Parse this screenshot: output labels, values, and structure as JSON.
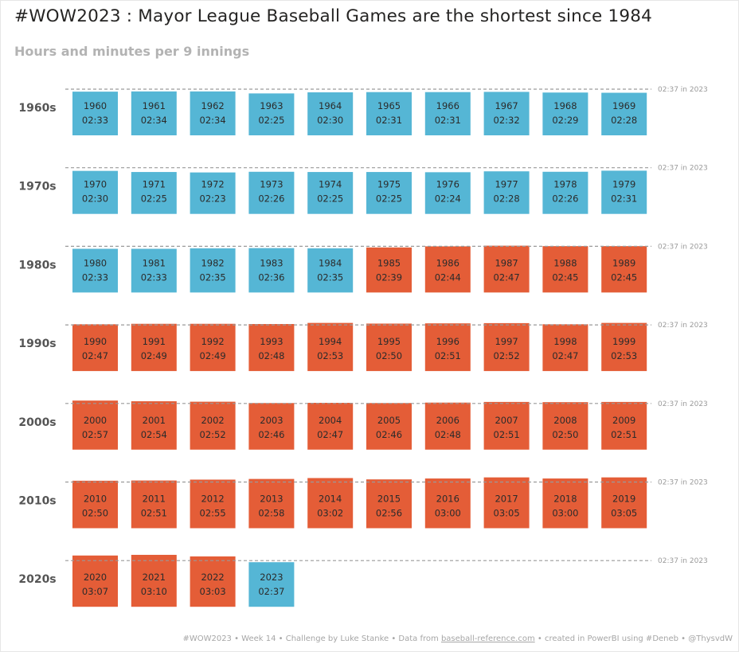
{
  "title": "#WOW2023 : Mayor League Baseball Games are the shortest since 1984",
  "subtitle": "Hours and minutes per 9 innings",
  "colors": {
    "below_reference": "#55b6d5",
    "above_reference": "#e45d37",
    "reference_line": "#9a9a9a",
    "text": "#2b2b2b"
  },
  "chart_data": {
    "type": "heatmap",
    "reference": {
      "label": "02:37 in 2023",
      "minutes": 157
    },
    "decades": [
      {
        "label": "1960s",
        "games": [
          {
            "year": "1960",
            "time": "02:33",
            "minutes": 153
          },
          {
            "year": "1961",
            "time": "02:34",
            "minutes": 154
          },
          {
            "year": "1962",
            "time": "02:34",
            "minutes": 154
          },
          {
            "year": "1963",
            "time": "02:25",
            "minutes": 145
          },
          {
            "year": "1964",
            "time": "02:30",
            "minutes": 150
          },
          {
            "year": "1965",
            "time": "02:31",
            "minutes": 151
          },
          {
            "year": "1966",
            "time": "02:31",
            "minutes": 151
          },
          {
            "year": "1967",
            "time": "02:32",
            "minutes": 152
          },
          {
            "year": "1968",
            "time": "02:29",
            "minutes": 149
          },
          {
            "year": "1969",
            "time": "02:28",
            "minutes": 148
          }
        ]
      },
      {
        "label": "1970s",
        "games": [
          {
            "year": "1970",
            "time": "02:30",
            "minutes": 150
          },
          {
            "year": "1971",
            "time": "02:25",
            "minutes": 145
          },
          {
            "year": "1972",
            "time": "02:23",
            "minutes": 143
          },
          {
            "year": "1973",
            "time": "02:26",
            "minutes": 146
          },
          {
            "year": "1974",
            "time": "02:25",
            "minutes": 145
          },
          {
            "year": "1975",
            "time": "02:25",
            "minutes": 145
          },
          {
            "year": "1976",
            "time": "02:24",
            "minutes": 144
          },
          {
            "year": "1977",
            "time": "02:28",
            "minutes": 148
          },
          {
            "year": "1978",
            "time": "02:26",
            "minutes": 146
          },
          {
            "year": "1979",
            "time": "02:31",
            "minutes": 151
          }
        ]
      },
      {
        "label": "1980s",
        "games": [
          {
            "year": "1980",
            "time": "02:33",
            "minutes": 153
          },
          {
            "year": "1981",
            "time": "02:33",
            "minutes": 153
          },
          {
            "year": "1982",
            "time": "02:35",
            "minutes": 155
          },
          {
            "year": "1983",
            "time": "02:36",
            "minutes": 156
          },
          {
            "year": "1984",
            "time": "02:35",
            "minutes": 155
          },
          {
            "year": "1985",
            "time": "02:39",
            "minutes": 159
          },
          {
            "year": "1986",
            "time": "02:44",
            "minutes": 164
          },
          {
            "year": "1987",
            "time": "02:47",
            "minutes": 167
          },
          {
            "year": "1988",
            "time": "02:45",
            "minutes": 165
          },
          {
            "year": "1989",
            "time": "02:45",
            "minutes": 165
          }
        ]
      },
      {
        "label": "1990s",
        "games": [
          {
            "year": "1990",
            "time": "02:47",
            "minutes": 167
          },
          {
            "year": "1991",
            "time": "02:49",
            "minutes": 169
          },
          {
            "year": "1992",
            "time": "02:49",
            "minutes": 169
          },
          {
            "year": "1993",
            "time": "02:48",
            "minutes": 168
          },
          {
            "year": "1994",
            "time": "02:53",
            "minutes": 173
          },
          {
            "year": "1995",
            "time": "02:50",
            "minutes": 170
          },
          {
            "year": "1996",
            "time": "02:51",
            "minutes": 171
          },
          {
            "year": "1997",
            "time": "02:52",
            "minutes": 172
          },
          {
            "year": "1998",
            "time": "02:47",
            "minutes": 167
          },
          {
            "year": "1999",
            "time": "02:53",
            "minutes": 173
          }
        ]
      },
      {
        "label": "2000s",
        "games": [
          {
            "year": "2000",
            "time": "02:57",
            "minutes": 177
          },
          {
            "year": "2001",
            "time": "02:54",
            "minutes": 174
          },
          {
            "year": "2002",
            "time": "02:52",
            "minutes": 172
          },
          {
            "year": "2003",
            "time": "02:46",
            "minutes": 166
          },
          {
            "year": "2004",
            "time": "02:47",
            "minutes": 167
          },
          {
            "year": "2005",
            "time": "02:46",
            "minutes": 166
          },
          {
            "year": "2006",
            "time": "02:48",
            "minutes": 168
          },
          {
            "year": "2007",
            "time": "02:51",
            "minutes": 171
          },
          {
            "year": "2008",
            "time": "02:50",
            "minutes": 170
          },
          {
            "year": "2009",
            "time": "02:51",
            "minutes": 171
          }
        ]
      },
      {
        "label": "2010s",
        "games": [
          {
            "year": "2010",
            "time": "02:50",
            "minutes": 170
          },
          {
            "year": "2011",
            "time": "02:51",
            "minutes": 171
          },
          {
            "year": "2012",
            "time": "02:55",
            "minutes": 175
          },
          {
            "year": "2013",
            "time": "02:58",
            "minutes": 178
          },
          {
            "year": "2014",
            "time": "03:02",
            "minutes": 182
          },
          {
            "year": "2015",
            "time": "02:56",
            "minutes": 176
          },
          {
            "year": "2016",
            "time": "03:00",
            "minutes": 180
          },
          {
            "year": "2017",
            "time": "03:05",
            "minutes": 185
          },
          {
            "year": "2018",
            "time": "03:00",
            "minutes": 180
          },
          {
            "year": "2019",
            "time": "03:05",
            "minutes": 185
          }
        ]
      },
      {
        "label": "2020s",
        "games": [
          {
            "year": "2020",
            "time": "03:07",
            "minutes": 187
          },
          {
            "year": "2021",
            "time": "03:10",
            "minutes": 190
          },
          {
            "year": "2022",
            "time": "03:03",
            "minutes": 183
          },
          {
            "year": "2023",
            "time": "02:37",
            "minutes": 157
          }
        ]
      }
    ]
  },
  "footer": {
    "prefix": "#WOW2023 • Week 14 • Challenge by Luke Stanke • Data from ",
    "link": "baseball-reference.com",
    "suffix": " • created in PowerBI using #Deneb • @ThysvdW"
  }
}
